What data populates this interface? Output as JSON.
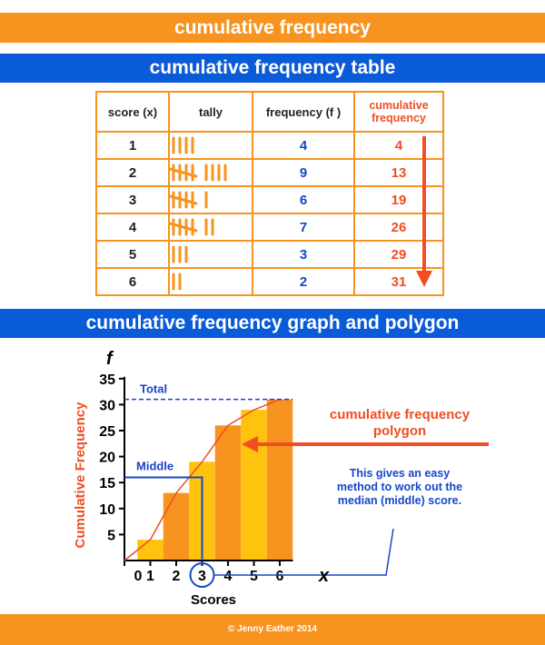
{
  "header": {
    "title": "cumulative frequency",
    "table_title": "cumulative frequency table",
    "graph_title": "cumulative frequency graph and polygon"
  },
  "table": {
    "headers": {
      "score": "score (x)",
      "tally": "tally",
      "frequency": "frequency (f )",
      "cumulative_line1": "cumulative",
      "cumulative_line2": "frequency"
    },
    "rows": [
      {
        "score": "1",
        "tally": 4,
        "frequency": "4",
        "cumulative": "4"
      },
      {
        "score": "2",
        "tally": 9,
        "frequency": "9",
        "cumulative": "13"
      },
      {
        "score": "3",
        "tally": 6,
        "frequency": "6",
        "cumulative": "19"
      },
      {
        "score": "4",
        "tally": 7,
        "frequency": "7",
        "cumulative": "26"
      },
      {
        "score": "5",
        "tally": 3,
        "frequency": "3",
        "cumulative": "29"
      },
      {
        "score": "6",
        "tally": 2,
        "frequency": "2",
        "cumulative": "31"
      }
    ]
  },
  "chart_data": {
    "type": "bar",
    "categories": [
      1,
      2,
      3,
      4,
      5,
      6
    ],
    "values": [
      4,
      13,
      19,
      26,
      29,
      31
    ],
    "polygon": {
      "x": [
        0,
        1,
        2,
        3,
        4,
        5,
        6
      ],
      "y": [
        0,
        4,
        13,
        19,
        26,
        29,
        31
      ]
    },
    "xlabel": "Scores",
    "ylabel": "Cumulative Frequency",
    "x_axis_letter": "x",
    "y_axis_letter": "f",
    "x_ticks": [
      "0",
      "1",
      "2",
      "3",
      "4",
      "5",
      "6"
    ],
    "y_ticks": [
      "5",
      "10",
      "15",
      "20",
      "25",
      "30",
      "35"
    ],
    "xlim": [
      0,
      7
    ],
    "ylim": [
      0,
      35
    ],
    "total": {
      "label": "Total",
      "value": 31
    },
    "median": {
      "label": "Middle",
      "value": 16,
      "score": 3
    },
    "colors": {
      "bar_light": "#ffc20e",
      "bar_dark": "#f7931e",
      "polygon": "#f04e23",
      "guide": "#1747c9"
    }
  },
  "annotations": {
    "polygon_label_line1": "cumulative frequency",
    "polygon_label_line2": "polygon",
    "median_note": "This gives an easy method to work out the median (middle) score."
  },
  "footer": {
    "credit": "© Jenny Eather 2014"
  }
}
